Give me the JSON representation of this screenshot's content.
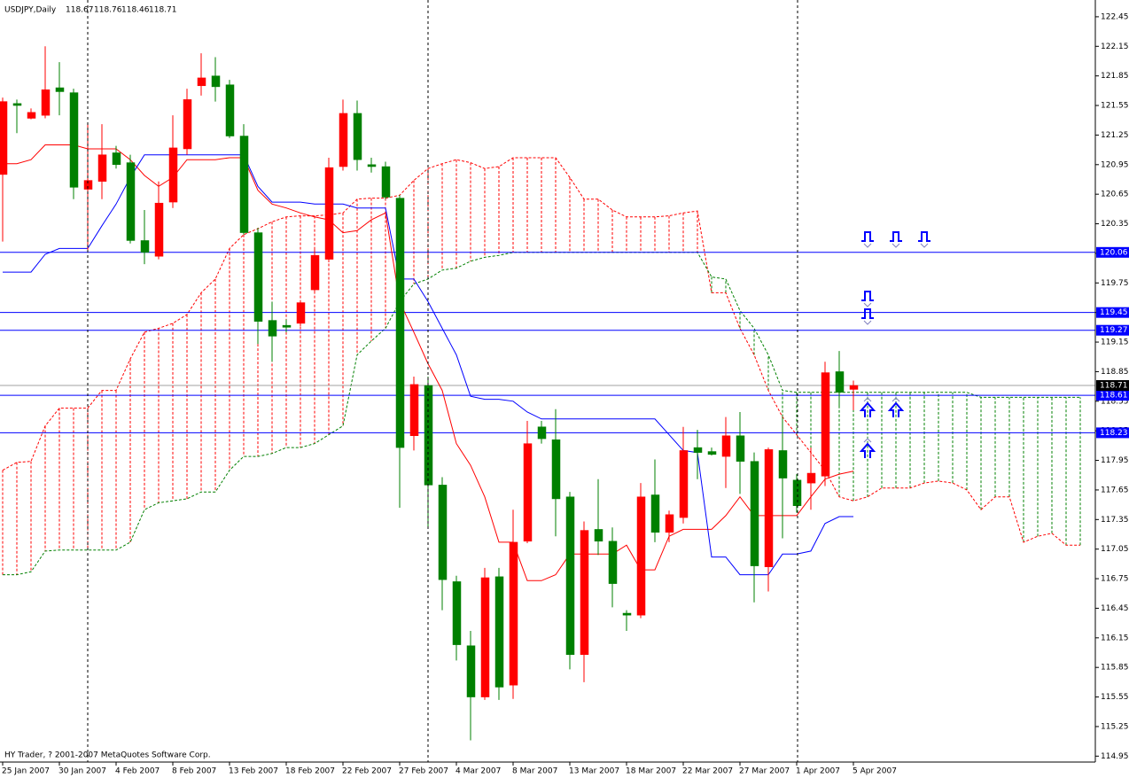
{
  "chart_data": {
    "type": "candlestick",
    "title": "USDJPY,Daily",
    "footer": "HY Trader, ? 2001-2007 MetaQuotes Software Corp.",
    "categories": [
      "25 Jan 2007",
      null,
      null,
      null,
      "30 Jan 2007",
      null,
      null,
      null,
      "4 Feb 2007",
      null,
      null,
      null,
      "8 Feb 2007",
      null,
      null,
      null,
      "13 Feb 2007",
      null,
      null,
      null,
      "18 Feb 2007",
      null,
      null,
      null,
      "22 Feb 2007",
      null,
      null,
      null,
      "27 Feb 2007",
      null,
      null,
      null,
      "4 Mar 2007",
      null,
      null,
      null,
      "8 Mar 2007",
      null,
      null,
      null,
      "13 Mar 2007",
      null,
      null,
      null,
      "18 Mar 2007",
      null,
      null,
      null,
      "22 Mar 2007",
      null,
      null,
      null,
      "27 Mar 2007",
      null,
      null,
      null,
      "1 Apr 2007",
      null,
      null,
      null,
      "5 Apr 2007"
    ],
    "open": [
      120.85,
      121.57,
      121.42,
      121.45,
      121.73,
      121.68,
      120.7,
      120.78,
      121.07,
      120.97,
      120.18,
      120.02,
      120.57,
      121.11,
      121.75,
      121.85,
      121.76,
      121.24,
      120.26,
      119.37,
      119.32,
      119.34,
      119.68,
      119.99,
      120.93,
      121.47,
      120.95,
      120.93,
      120.61,
      118.2,
      118.71,
      117.7,
      116.72,
      116.07,
      115.55,
      116.77,
      115.67,
      117.13,
      118.29,
      118.16,
      117.58,
      115.98,
      117.25,
      117.13,
      116.4,
      116.38,
      117.6,
      117.22,
      117.37,
      118.08,
      118.04,
      117.99,
      118.2,
      117.94,
      116.87,
      118.05,
      117.75,
      117.72,
      117.79,
      118.85,
      118.67
    ],
    "high": [
      121.63,
      121.61,
      121.52,
      122.15,
      121.99,
      121.72,
      121.36,
      121.36,
      121.14,
      121.05,
      120.49,
      120.78,
      121.45,
      121.72,
      122.08,
      122.04,
      121.81,
      121.36,
      120.31,
      119.56,
      119.38,
      119.56,
      120.1,
      121.02,
      121.61,
      121.6,
      121.02,
      120.98,
      120.64,
      118.8,
      118.8,
      117.78,
      116.78,
      116.22,
      116.86,
      116.86,
      117.45,
      118.35,
      118.35,
      118.47,
      117.63,
      117.33,
      117.76,
      117.27,
      116.43,
      117.72,
      117.96,
      117.44,
      118.29,
      118.26,
      118.08,
      118.39,
      118.44,
      118.03,
      118.08,
      118.39,
      117.81,
      118.08,
      118.95,
      119.06,
      118.76
    ],
    "low": [
      120.17,
      121.27,
      121.41,
      121.42,
      121.45,
      120.6,
      120.06,
      120.6,
      120.91,
      120.15,
      119.94,
      119.99,
      120.51,
      121.05,
      121.65,
      121.59,
      121.22,
      120.24,
      119.13,
      118.95,
      119.25,
      119.31,
      119.65,
      119.96,
      120.89,
      120.89,
      120.87,
      120.6,
      117.47,
      118.05,
      117.27,
      116.43,
      115.92,
      115.11,
      115.52,
      115.52,
      115.53,
      117.11,
      118.12,
      117.18,
      115.83,
      115.7,
      116.99,
      116.46,
      116.22,
      116.35,
      117.12,
      117.12,
      117.31,
      117.76,
      118.0,
      117.67,
      117.61,
      116.51,
      116.62,
      117.16,
      117.42,
      117.45,
      117.69,
      118.5,
      118.46
    ],
    "close": [
      121.59,
      121.55,
      121.48,
      121.71,
      121.69,
      120.72,
      120.79,
      121.05,
      120.95,
      120.18,
      120.06,
      120.56,
      121.12,
      121.61,
      121.83,
      121.74,
      121.24,
      120.26,
      119.36,
      119.21,
      119.3,
      119.55,
      120.03,
      120.92,
      121.47,
      121.0,
      120.93,
      120.62,
      118.08,
      118.72,
      117.7,
      116.74,
      116.08,
      115.55,
      116.76,
      115.65,
      117.12,
      118.12,
      118.17,
      117.56,
      115.98,
      117.24,
      117.13,
      116.7,
      116.38,
      117.58,
      117.22,
      117.4,
      118.05,
      118.03,
      118.01,
      118.2,
      117.94,
      116.88,
      118.06,
      117.77,
      117.49,
      117.82,
      118.84,
      118.64,
      118.71
    ],
    "up_color": "#ff0000",
    "down_color": "#008000",
    "series": [
      {
        "color": "#ff0000",
        "values": [
          120.96,
          120.96,
          121.0,
          121.15,
          121.15,
          121.15,
          121.11,
          121.11,
          121.11,
          121.0,
          120.84,
          120.73,
          120.82,
          121.0,
          121.0,
          121.0,
          121.02,
          121.02,
          120.69,
          120.55,
          120.51,
          120.46,
          120.42,
          120.39,
          120.26,
          120.28,
          120.39,
          120.46,
          119.56,
          119.25,
          118.93,
          118.66,
          118.12,
          117.9,
          117.58,
          117.12,
          117.12,
          116.73,
          116.73,
          116.79,
          117.0,
          117.0,
          117.0,
          117.0,
          117.09,
          116.84,
          116.84,
          117.18,
          117.25,
          117.25,
          117.25,
          117.39,
          117.58,
          117.39,
          117.39,
          117.39,
          117.39,
          117.58,
          117.76,
          117.81,
          117.84
        ]
      },
      {
        "color": "#0000ff",
        "values": [
          119.86,
          119.86,
          119.86,
          120.04,
          120.1,
          120.1,
          120.1,
          120.33,
          120.55,
          120.82,
          121.05,
          121.05,
          121.05,
          121.05,
          121.05,
          121.05,
          121.05,
          121.05,
          120.73,
          120.57,
          120.57,
          120.57,
          120.55,
          120.55,
          120.55,
          120.51,
          120.51,
          120.51,
          119.79,
          119.79,
          119.56,
          119.29,
          119.02,
          118.6,
          118.57,
          118.57,
          118.55,
          118.44,
          118.37,
          118.37,
          118.37,
          118.37,
          118.37,
          118.37,
          118.37,
          118.37,
          118.37,
          118.21,
          118.05,
          118.03,
          116.97,
          116.97,
          116.79,
          116.79,
          116.79,
          117.0,
          117.0,
          117.03,
          117.31,
          117.38,
          117.38
        ]
      }
    ],
    "cloud": {
      "span_a": {
        "color": "#ff0000",
        "values": [
          117.85,
          117.93,
          117.94,
          118.3,
          118.48,
          118.48,
          118.48,
          118.66,
          118.66,
          118.98,
          119.25,
          119.29,
          119.34,
          119.43,
          119.65,
          119.79,
          120.1,
          120.24,
          120.3,
          120.37,
          120.42,
          120.43,
          120.43,
          120.44,
          120.46,
          120.6,
          120.61,
          120.61,
          120.64,
          120.79,
          120.91,
          120.96,
          121.0,
          120.97,
          120.91,
          120.93,
          121.02,
          121.02,
          121.02,
          121.02,
          120.82,
          120.6,
          120.6,
          120.49,
          120.42,
          120.42,
          120.42,
          120.43,
          120.46,
          120.48,
          119.65,
          119.65,
          119.29,
          119.02,
          118.66,
          118.39,
          118.21,
          118.03,
          117.85,
          117.58,
          117.54,
          117.58,
          117.67,
          117.67,
          117.67,
          117.72,
          117.74,
          117.72,
          117.65,
          117.45,
          117.58,
          117.58,
          117.12,
          117.18,
          117.21,
          117.09,
          117.09
        ]
      },
      "span_b": {
        "color": "#008000",
        "values": [
          116.79,
          116.79,
          116.82,
          117.03,
          117.04,
          117.04,
          117.04,
          117.04,
          117.04,
          117.12,
          117.45,
          117.52,
          117.54,
          117.56,
          117.63,
          117.63,
          117.85,
          117.99,
          117.99,
          118.02,
          118.08,
          118.08,
          118.12,
          118.21,
          118.3,
          119.02,
          119.16,
          119.29,
          119.56,
          119.74,
          119.79,
          119.88,
          119.9,
          119.97,
          120.01,
          120.03,
          120.06,
          120.06,
          120.06,
          120.06,
          120.06,
          120.06,
          120.06,
          120.06,
          120.06,
          120.06,
          120.06,
          120.06,
          120.06,
          120.06,
          119.81,
          119.79,
          119.47,
          119.29,
          119.02,
          118.66,
          118.64,
          118.64,
          118.64,
          118.64,
          118.64,
          118.64,
          118.64,
          118.64,
          118.64,
          118.64,
          118.64,
          118.64,
          118.64,
          118.59,
          118.59,
          118.59,
          118.59,
          118.59,
          118.59,
          118.59,
          118.59
        ]
      }
    },
    "levels": {
      "color": "#0000ff",
      "values": [
        120.06,
        119.45,
        119.27,
        118.61,
        118.23
      ]
    },
    "bid_color": "#a0a0a0",
    "ylim": [
      114.89,
      122.62
    ],
    "yticks": [
      114.95,
      115.25,
      115.55,
      115.85,
      116.15,
      116.45,
      116.75,
      117.05,
      117.35,
      117.65,
      117.95,
      118.25,
      118.55,
      118.85,
      119.15,
      119.45,
      119.75,
      120.05,
      120.35,
      120.65,
      120.95,
      121.25,
      121.55,
      121.85,
      122.15,
      122.45
    ]
  }
}
